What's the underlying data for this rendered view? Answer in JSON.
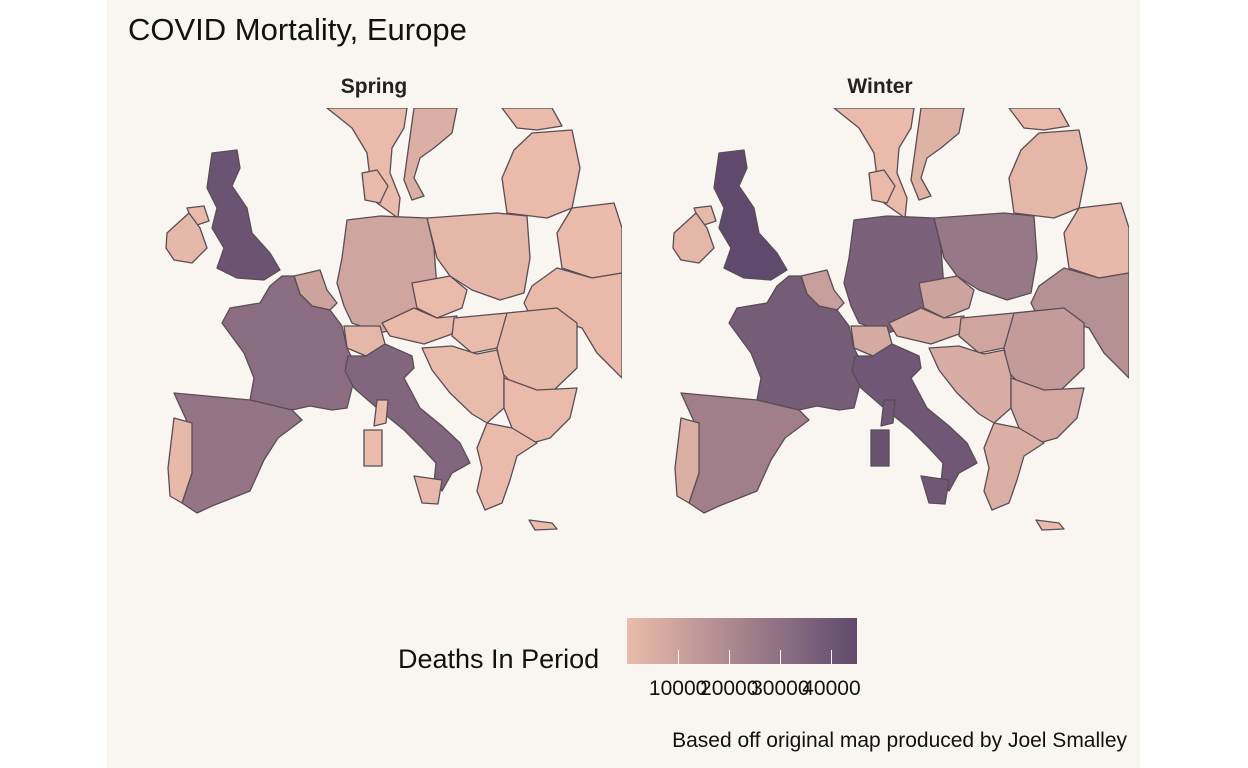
{
  "title": "COVID Mortality, Europe",
  "facets": [
    {
      "label": "Spring"
    },
    {
      "label": "Winter"
    }
  ],
  "legend": {
    "title": "Deaths In Period",
    "min": 0,
    "max": 45000,
    "color_low": "#ebbcab",
    "color_high": "#5f4a6e",
    "breaks": [
      10000,
      20000,
      30000,
      40000
    ],
    "labels": [
      "10000",
      "20000",
      "30000",
      "40000"
    ]
  },
  "caption": "Based off original map produced by Joel Smalley",
  "background_color": "#f9f5f1",
  "region_values": {
    "spring": {
      "uk": 41000,
      "ireland": 1700,
      "northern_ireland": 900,
      "france": 31000,
      "spain": 28000,
      "portugal": 1300,
      "italy": 34000,
      "germany": 9000,
      "benelux": 10000,
      "switzerland": 2000,
      "austria": 700,
      "poland": 2000,
      "czechia": 300,
      "hungary": 500,
      "balkans": 500,
      "romania": 1300,
      "bulgaria": 200,
      "greece": 200,
      "sweden": 5000,
      "norway": 250,
      "finland": 300,
      "denmark": 600,
      "baltics": 200,
      "belarus": 150,
      "ukraine": 800,
      "sicily": 1000,
      "sardinia": 130,
      "corsica": 50,
      "cyprus": 20
    },
    "winter": {
      "uk": 45000,
      "ireland": 1800,
      "northern_ireland": 1200,
      "france": 38000,
      "spain": 24000,
      "portugal": 5000,
      "italy": 40000,
      "germany": 36000,
      "benelux": 12000,
      "switzerland": 7000,
      "austria": 6000,
      "poland": 27000,
      "czechia": 10000,
      "hungary": 9000,
      "balkans": 6000,
      "romania": 13000,
      "bulgaria": 8000,
      "greece": 5000,
      "sweden": 4000,
      "norway": 300,
      "finland": 300,
      "denmark": 800,
      "baltics": 2000,
      "belarus": 1000,
      "ukraine": 17000,
      "sicily": 40000,
      "sardinia": 42000,
      "corsica": 40000,
      "cyprus": 200
    }
  }
}
